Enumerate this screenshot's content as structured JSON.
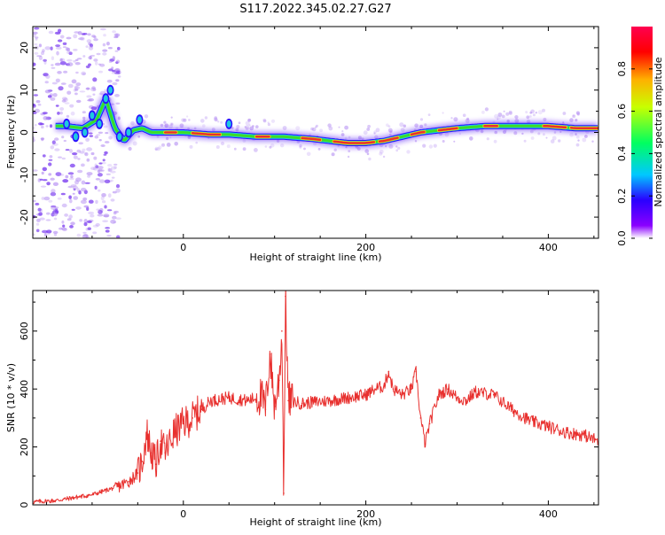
{
  "title": "S117.2022.345.02.27.G27",
  "colors": {
    "snr_line": "#e8302e",
    "ridge_core": "#e8302e",
    "ridge_mid": "#3cdc28",
    "ridge_outer": "#1ec8e0",
    "halo": "#b38cf2",
    "scatter": "#7a3cf0"
  },
  "chart_data": [
    {
      "type": "heatmap",
      "xlabel": "Height of straight line (km)",
      "ylabel": "Frequency (Hz)",
      "xlim": [
        -165,
        455
      ],
      "ylim": [
        -25,
        25
      ],
      "x_ticks": [
        0,
        200,
        400
      ],
      "y_ticks": [
        -20,
        -10,
        0,
        10,
        20
      ],
      "colorbar": {
        "label": "Normalized spectral amplitude",
        "range": [
          0,
          1
        ],
        "ticks": [
          "0.0",
          "0.2",
          "0.4",
          "0.6",
          "0.8"
        ],
        "tick_values": [
          0.0,
          0.2,
          0.4,
          0.6,
          0.8
        ],
        "colormap": [
          "#ffffff",
          "#8a00ff",
          "#2a00ff",
          "#00c8ff",
          "#00ff60",
          "#c8ff00",
          "#ffb000",
          "#ff0000",
          "#ff0050"
        ]
      },
      "ridge_frequency": {
        "x": [
          -130,
          -110,
          -95,
          -85,
          -75,
          -65,
          -55,
          -45,
          -35,
          -20,
          0,
          30,
          50,
          80,
          110,
          140,
          160,
          180,
          200,
          220,
          240,
          260,
          280,
          300,
          330,
          360,
          400,
          430,
          455
        ],
        "y": [
          1.5,
          1.0,
          3.0,
          8.0,
          1.0,
          -2.0,
          0.5,
          1.0,
          0.0,
          0.0,
          0.0,
          -0.5,
          -0.5,
          -1.0,
          -1.0,
          -1.5,
          -2.0,
          -2.5,
          -2.5,
          -2.0,
          -1.0,
          0.0,
          0.5,
          1.0,
          1.5,
          1.5,
          1.5,
          1.0,
          1.0
        ]
      }
    },
    {
      "type": "line",
      "xlabel": "Height of straight line (km)",
      "ylabel": "SNR (10 * v/v)",
      "xlim": [
        -165,
        455
      ],
      "ylim": [
        0,
        740
      ],
      "x_ticks": [
        0,
        200,
        400
      ],
      "y_ticks": [
        0,
        200,
        400,
        600
      ],
      "series": [
        {
          "x": [
            -165,
            -140,
            -120,
            -100,
            -80,
            -70,
            -60,
            -50,
            -45,
            -40,
            -35,
            -30,
            -25,
            -20,
            -10,
            0,
            10,
            20,
            30,
            50,
            70,
            85,
            90,
            95,
            100,
            105,
            108,
            110,
            112,
            115,
            130,
            160,
            180,
            200,
            210,
            220,
            225,
            230,
            240,
            250,
            255,
            260,
            265,
            270,
            280,
            290,
            300,
            310,
            320,
            340,
            360,
            380,
            400,
            420,
            440,
            455
          ],
          "y": [
            10,
            15,
            25,
            35,
            55,
            65,
            80,
            110,
            150,
            250,
            180,
            140,
            220,
            180,
            250,
            280,
            300,
            330,
            360,
            370,
            360,
            375,
            330,
            520,
            340,
            430,
            600,
            40,
            720,
            360,
            350,
            360,
            370,
            380,
            400,
            410,
            460,
            400,
            380,
            400,
            460,
            300,
            210,
            280,
            380,
            400,
            370,
            360,
            390,
            380,
            330,
            290,
            270,
            250,
            240,
            220
          ]
        }
      ]
    }
  ]
}
